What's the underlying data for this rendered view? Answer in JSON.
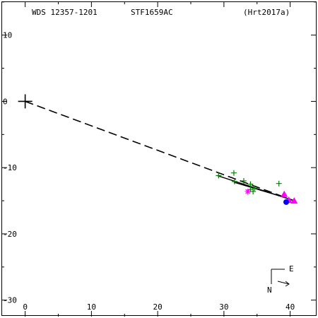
{
  "header": {
    "wds_id": "WDS 12357-1201",
    "discoverer": "STF1659AC",
    "reference": "(Hrt2017a)"
  },
  "compass": {
    "east_label": "E",
    "north_label": "N"
  },
  "chart_data": {
    "type": "scatter",
    "title": "",
    "xlabel": "",
    "ylabel": "",
    "xlim": [
      -3.8,
      44.2
    ],
    "ylim": [
      -32.7,
      15.3
    ],
    "x_ticks": [
      0,
      10,
      20,
      30,
      40
    ],
    "y_ticks": [
      10,
      0,
      -10,
      -20,
      -30
    ],
    "y_tick_labels": [
      "10",
      "0",
      "-10",
      "-20",
      "-30"
    ],
    "primary": {
      "x": 0,
      "y": 0,
      "marker": "cross"
    },
    "dashed_line": {
      "from": [
        0,
        0
      ],
      "to": [
        40.6,
        -15.0
      ],
      "color": "#000000"
    },
    "orbit_lines": [
      {
        "from": [
          29.0,
          -11.2
        ],
        "to": [
          40.6,
          -15.0
        ],
        "color": "#000000"
      },
      {
        "from": [
          31.5,
          -12.2
        ],
        "to": [
          39.5,
          -14.6
        ],
        "color": "#000000"
      }
    ],
    "series": [
      {
        "marker": "plus",
        "color": "#008000",
        "points": [
          [
            29.2,
            -11.2
          ],
          [
            31.5,
            -10.8
          ],
          [
            31.6,
            -12.1
          ],
          [
            33.0,
            -12.0
          ],
          [
            34.0,
            -12.5
          ],
          [
            34.6,
            -13.1
          ],
          [
            34.0,
            -13.3
          ],
          [
            34.4,
            -13.6
          ],
          [
            38.3,
            -12.4
          ]
        ]
      },
      {
        "marker": "asterisk",
        "color": "#ff00ff",
        "points": [
          [
            33.6,
            -13.6
          ]
        ]
      },
      {
        "marker": "triangle",
        "color": "#ff00ff",
        "points": [
          [
            39.1,
            -14.0
          ],
          [
            39.8,
            -14.9
          ],
          [
            40.6,
            -15.0
          ]
        ]
      },
      {
        "marker": "filled-circle",
        "color": "#0000ff",
        "points": [
          [
            39.4,
            -15.2
          ]
        ]
      }
    ]
  }
}
